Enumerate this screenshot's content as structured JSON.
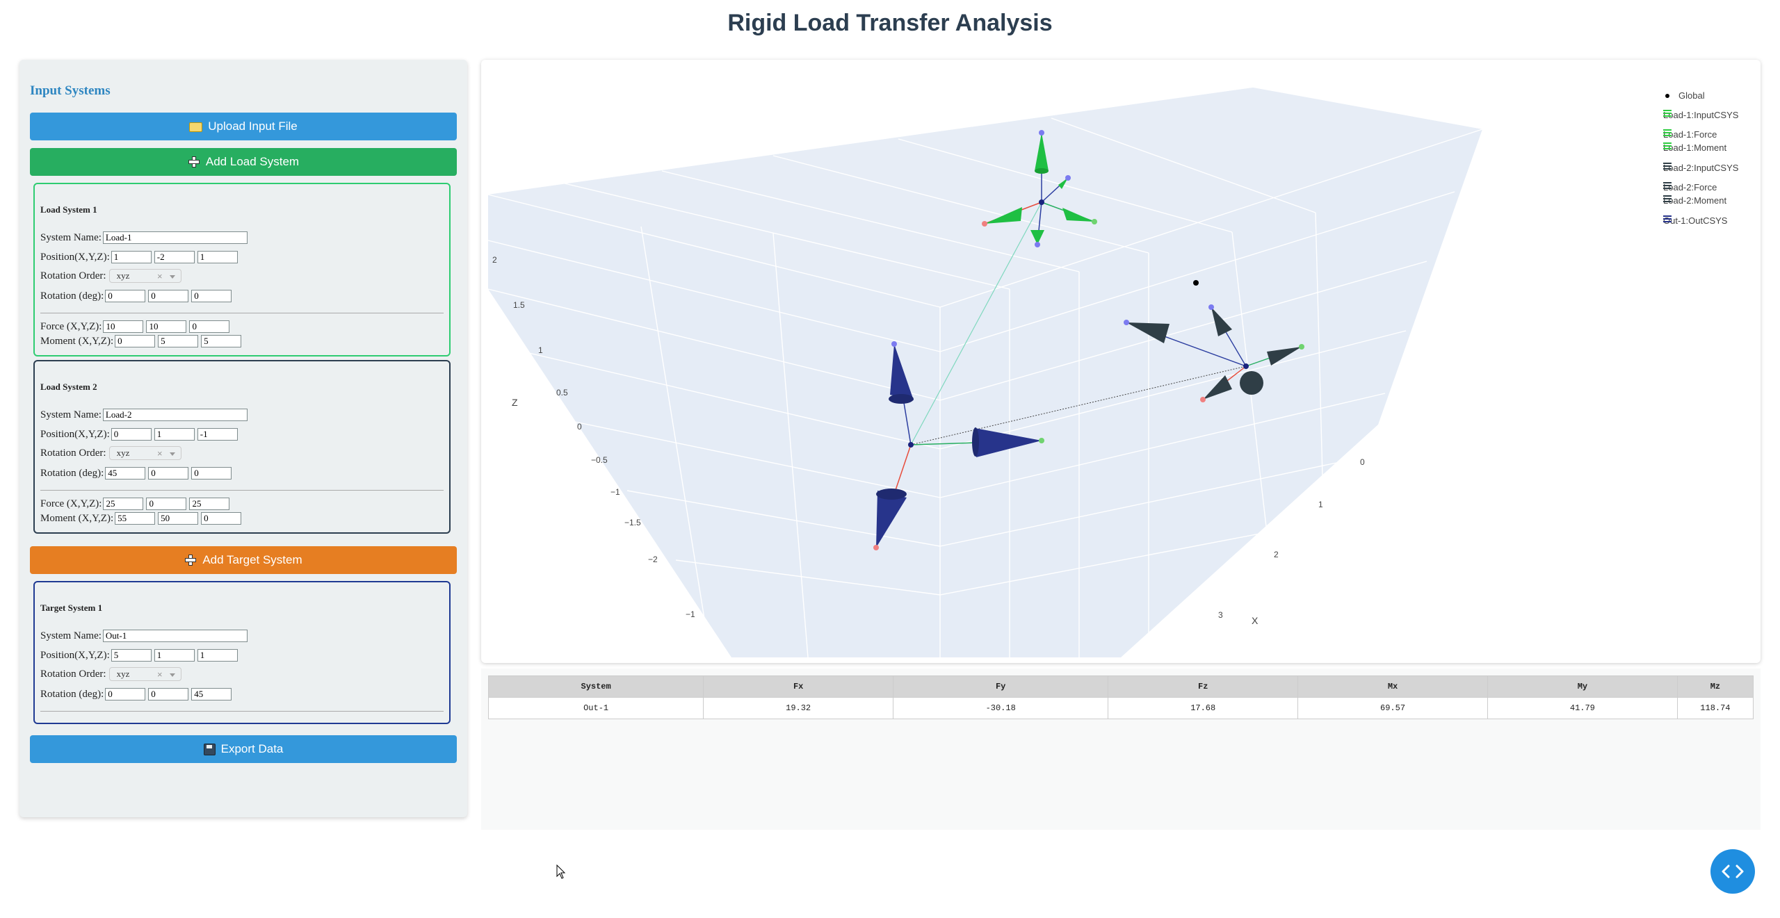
{
  "app": {
    "title": "Rigid Load Transfer Analysis"
  },
  "sidebar": {
    "heading": "Input Systems",
    "upload_label": "Upload Input File",
    "add_load_label": "Add Load System",
    "add_target_label": "Add Target System",
    "export_label": "Export Data",
    "labels": {
      "system_name": "System Name:",
      "position": "Position(X,Y,Z):",
      "rotation_order": "Rotation Order:",
      "rotation_deg": "Rotation (deg):",
      "force": "Force (X,Y,Z):",
      "moment": "Moment (X,Y,Z):"
    },
    "load_systems": [
      {
        "title": "Load System 1",
        "name": "Load-1",
        "position": [
          "1",
          "-2",
          "1"
        ],
        "rotation_order": "xyz",
        "rotation": [
          "0",
          "0",
          "0"
        ],
        "force": [
          "10",
          "10",
          "0"
        ],
        "moment": [
          "0",
          "5",
          "5"
        ]
      },
      {
        "title": "Load System 2",
        "name": "Load-2",
        "position": [
          "0",
          "1",
          "-1"
        ],
        "rotation_order": "xyz",
        "rotation": [
          "45",
          "0",
          "0"
        ],
        "force": [
          "25",
          "0",
          "25"
        ],
        "moment": [
          "55",
          "50",
          "0"
        ]
      }
    ],
    "target_systems": [
      {
        "title": "Target System 1",
        "name": "Out-1",
        "position": [
          "5",
          "1",
          "1"
        ],
        "rotation_order": "xyz",
        "rotation": [
          "0",
          "0",
          "45"
        ]
      }
    ]
  },
  "plot": {
    "z_axis_title": "Z",
    "x_axis_title": "X",
    "z_ticks": [
      "2",
      "1.5",
      "1",
      "0.5",
      "0",
      "−0.5",
      "−1",
      "−1.5",
      "−2"
    ],
    "x_ticks": [
      "0",
      "1",
      "2",
      "3"
    ],
    "y_ticks": [
      "−1"
    ],
    "legend": [
      {
        "label": "Global",
        "color": "#000000",
        "kind": "dot"
      },
      {
        "label": "Load-1:InputCSYS",
        "color": "#2ecc40",
        "kind": "cone"
      },
      {
        "label": "Load-1:Force",
        "color": "#2ecc40",
        "kind": "cone"
      },
      {
        "label": "Load-1:Moment",
        "color": "#2ecc40",
        "kind": "cone"
      },
      {
        "label": "Load-2:InputCSYS",
        "color": "#2f3e46",
        "kind": "cone"
      },
      {
        "label": "Load-2:Force",
        "color": "#2f3e46",
        "kind": "cone"
      },
      {
        "label": "Load-2:Moment",
        "color": "#2f3e46",
        "kind": "cone"
      },
      {
        "label": "Out-1:OutCSYS",
        "color": "#27348b",
        "kind": "cone"
      }
    ],
    "colors": {
      "load1": "#1fbf43",
      "load2": "#2f3e46",
      "out1": "#27348b",
      "x_axis": "#e74c3c",
      "y_axis": "#27ae60",
      "z_axis": "#2c3ea0",
      "scene_bg": "#e5ecf6"
    }
  },
  "results": {
    "headers": [
      "System",
      "Fx",
      "Fy",
      "Fz",
      "Mx",
      "My",
      "Mz"
    ],
    "rows": [
      [
        "Out-1",
        "19.32",
        "-30.18",
        "17.68",
        "69.57",
        "41.79",
        "118.74"
      ]
    ]
  }
}
